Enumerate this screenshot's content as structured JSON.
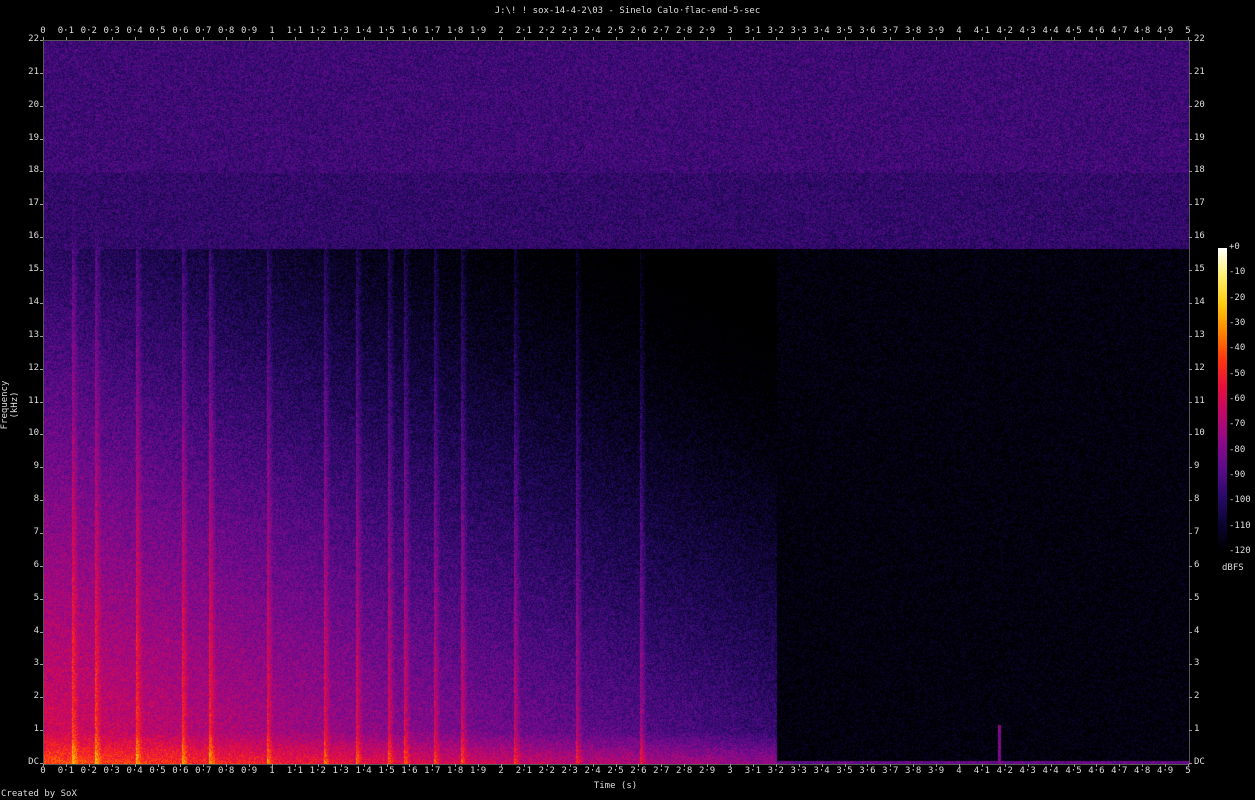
{
  "title": "J:\\! ! sox-14-4-2\\03 - Sinelo Calo·flac-end-5-sec",
  "credit": "Created by SoX",
  "chart_data": {
    "type": "heatmap",
    "title": "J:\\! ! sox-14-4-2\\03 - Sinelo Calo·flac-end-5-sec",
    "xlabel": "Time (s)",
    "ylabel": "Frequency (kHz)",
    "xlim": [
      0,
      5
    ],
    "ylim": [
      0,
      22
    ],
    "x_ticks": [
      "0",
      "0·1",
      "0·2",
      "0·3",
      "0·4",
      "0·5",
      "0·6",
      "0·7",
      "0·8",
      "0·9",
      "1",
      "1·1",
      "1·2",
      "1·3",
      "1·4",
      "1·5",
      "1·6",
      "1·7",
      "1·8",
      "1·9",
      "2",
      "2·1",
      "2·2",
      "2·3",
      "2·4",
      "2·5",
      "2·6",
      "2·7",
      "2·8",
      "2·9",
      "3",
      "3·1",
      "3·2",
      "3·3",
      "3·4",
      "3·5",
      "3·6",
      "3·7",
      "3·8",
      "3·9",
      "4",
      "4·1",
      "4·2",
      "4·3",
      "4·4",
      "4·5",
      "4·6",
      "4·7",
      "4·8",
      "4·9",
      "5"
    ],
    "y_ticks": [
      "DC",
      "1",
      "2",
      "3",
      "4",
      "5",
      "6",
      "7",
      "8",
      "9",
      "10",
      "11",
      "12",
      "13",
      "14",
      "15",
      "16",
      "17",
      "18",
      "19",
      "20",
      "21",
      "22"
    ],
    "colorbar": {
      "unit": "dBFS",
      "ticks": [
        "+0",
        "-10",
        "-20",
        "-30",
        "-40",
        "-50",
        "-60",
        "-70",
        "-80",
        "-90",
        "-100",
        "-110",
        "-120"
      ],
      "range": [
        -120,
        0
      ],
      "colors": [
        "#000000",
        "#0b0530",
        "#2a0a6a",
        "#5c0c8a",
        "#8e0a8a",
        "#c0086a",
        "#e8103c",
        "#ff3a10",
        "#ff8a00",
        "#ffcc10",
        "#fff070",
        "#ffffff"
      ]
    },
    "notes_visible": {
      "music_end_time_s": 3.2,
      "lowpass_shelf_khz": 15.7,
      "transient_at_s": 4.17
    }
  }
}
